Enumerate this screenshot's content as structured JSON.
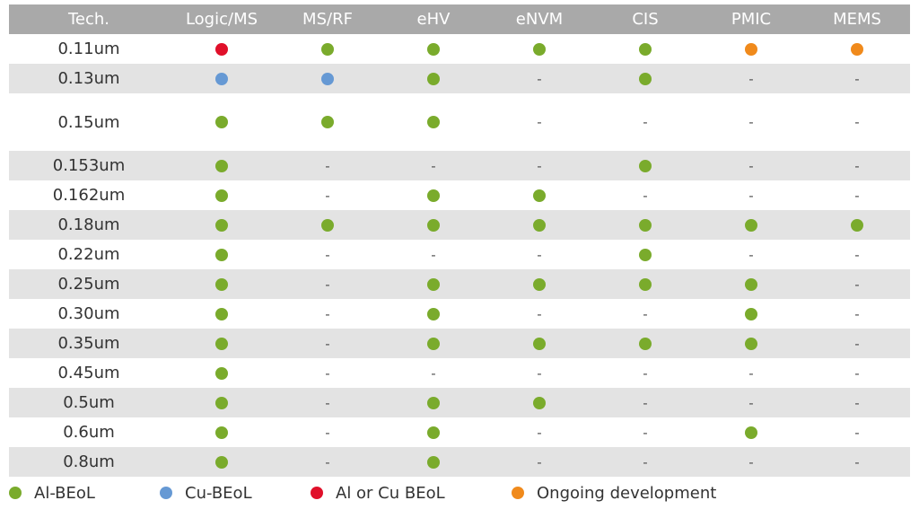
{
  "colors": {
    "green": "#7aab2c",
    "blue": "#6699d4",
    "red": "#e0102a",
    "orange": "#f08a1c"
  },
  "table": {
    "columns": [
      "Tech.",
      "Logic/MS",
      "MS/RF",
      "eHV",
      "eNVM",
      "CIS",
      "PMIC",
      "MEMS"
    ],
    "rows": [
      {
        "tech": "0.11um",
        "cells": [
          "red",
          "green",
          "green",
          "green",
          "green",
          "orange",
          "orange"
        ]
      },
      {
        "tech": "0.13um",
        "cells": [
          "blue",
          "blue",
          "green",
          "-",
          "green",
          "-",
          "-"
        ]
      },
      {
        "tech": "0.15um",
        "cells": [
          "green",
          "green",
          "green",
          "-",
          "-",
          "-",
          "-"
        ]
      },
      {
        "tech": "0.153um",
        "cells": [
          "green",
          "-",
          "-",
          "-",
          "green",
          "-",
          "-"
        ]
      },
      {
        "tech": "0.162um",
        "cells": [
          "green",
          "-",
          "green",
          "green",
          "-",
          "-",
          "-"
        ]
      },
      {
        "tech": "0.18um",
        "cells": [
          "green",
          "green",
          "green",
          "green",
          "green",
          "green",
          "green"
        ]
      },
      {
        "tech": "0.22um",
        "cells": [
          "green",
          "-",
          "-",
          "-",
          "green",
          "-",
          "-"
        ]
      },
      {
        "tech": "0.25um",
        "cells": [
          "green",
          "-",
          "green",
          "green",
          "green",
          "green",
          "-"
        ]
      },
      {
        "tech": "0.30um",
        "cells": [
          "green",
          "-",
          "green",
          "-",
          "-",
          "green",
          "-"
        ]
      },
      {
        "tech": "0.35um",
        "cells": [
          "green",
          "-",
          "green",
          "green",
          "green",
          "green",
          "-"
        ]
      },
      {
        "tech": "0.45um",
        "cells": [
          "green",
          "-",
          "-",
          "-",
          "-",
          "-",
          "-"
        ]
      },
      {
        "tech": "0.5um",
        "cells": [
          "green",
          "-",
          "green",
          "green",
          "-",
          "-",
          "-"
        ]
      },
      {
        "tech": "0.6um",
        "cells": [
          "green",
          "-",
          "green",
          "-",
          "-",
          "green",
          "-"
        ]
      },
      {
        "tech": "0.8um",
        "cells": [
          "green",
          "-",
          "green",
          "-",
          "-",
          "-",
          "-"
        ]
      }
    ]
  },
  "legend": [
    {
      "color": "green",
      "label": "Al-BEoL"
    },
    {
      "color": "blue",
      "label": "Cu-BEoL"
    },
    {
      "color": "red",
      "label": "Al or Cu BEoL"
    },
    {
      "color": "orange",
      "label": "Ongoing development"
    }
  ]
}
